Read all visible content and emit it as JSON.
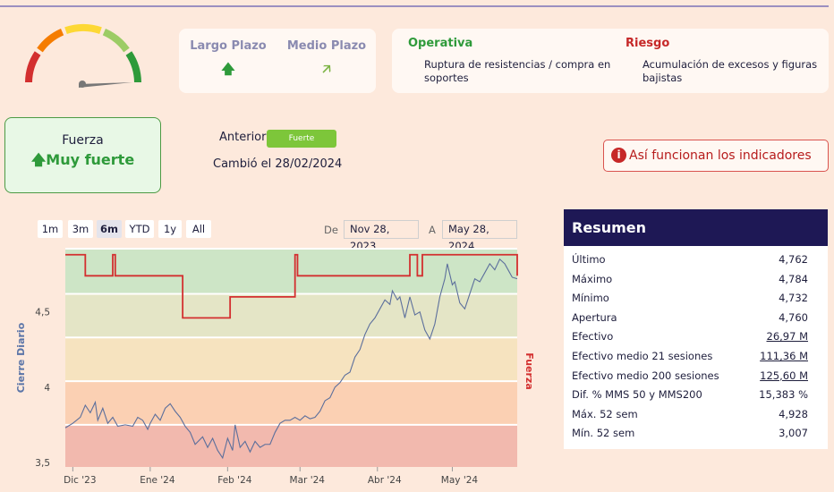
{
  "gauge": {
    "colors": [
      "#d32f2f",
      "#f57c00",
      "#fdd835",
      "#9ccc65",
      "#2e9a3a"
    ],
    "needle_color": "#777777"
  },
  "terms": [
    {
      "label": "Largo Plazo",
      "arrow": "🡅",
      "color": "#2e9a3a"
    },
    {
      "label": "Medio Plazo",
      "arrow": "🡥",
      "color": "#7cb342"
    }
  ],
  "operativa": {
    "title": "Operativa",
    "text": "Ruptura de resistencias / compra en soportes"
  },
  "riesgo": {
    "title": "Riesgo",
    "text": "Acumulación de excesos y figuras bajistas"
  },
  "strength": {
    "label": "Fuerza",
    "arrow": "🡅",
    "value": "Muy fuerte"
  },
  "previous": {
    "label": "Anterior",
    "badge": "Fuerte",
    "changed": "Cambió el 28/02/2024"
  },
  "info_button": {
    "icon": "i",
    "label": "Así funcionan los indicadores"
  },
  "range_buttons": [
    "1m",
    "3m",
    "6m",
    "YTD",
    "1y",
    "All"
  ],
  "active_range": "6m",
  "date_range": {
    "from_label": "De",
    "from": "Nov 28, 2023",
    "to_label": "A",
    "to": "May 28, 2024"
  },
  "chart_data": {
    "type": "line",
    "ylabel": "Cierre Diario",
    "y2label": "Fuerza",
    "y_ticks": [
      "3,5",
      "4",
      "4,5"
    ],
    "ylim": [
      3.47,
      4.92
    ],
    "x_ticks": [
      "Dic '23",
      "Ene '24",
      "Feb '24",
      "Mar '24",
      "Abr '24",
      "May '24"
    ],
    "x_tick_days": [
      3,
      34,
      65,
      94,
      125,
      155
    ],
    "x_days_total": 181,
    "bands": [
      {
        "from": 4.62,
        "to": 4.92,
        "color": "#cde5c6"
      },
      {
        "from": 4.33,
        "to": 4.62,
        "color": "#e4e5c6"
      },
      {
        "from": 4.04,
        "to": 4.33,
        "color": "#f6e3bf"
      },
      {
        "from": 3.75,
        "to": 4.04,
        "color": "#fbd0b3"
      },
      {
        "from": 3.47,
        "to": 3.75,
        "color": "#f2b9ae"
      }
    ],
    "series": [
      {
        "name": "Cierre Diario",
        "color": "#5c6f9c",
        "points": [
          [
            0,
            3.73
          ],
          [
            3,
            3.76
          ],
          [
            6,
            3.8
          ],
          [
            8,
            3.88
          ],
          [
            10,
            3.83
          ],
          [
            12,
            3.9
          ],
          [
            13,
            3.78
          ],
          [
            15,
            3.86
          ],
          [
            17,
            3.76
          ],
          [
            19,
            3.8
          ],
          [
            21,
            3.74
          ],
          [
            24,
            3.75
          ],
          [
            27,
            3.74
          ],
          [
            29,
            3.8
          ],
          [
            31,
            3.78
          ],
          [
            33,
            3.72
          ],
          [
            34,
            3.76
          ],
          [
            36,
            3.82
          ],
          [
            38,
            3.78
          ],
          [
            40,
            3.86
          ],
          [
            42,
            3.89
          ],
          [
            44,
            3.84
          ],
          [
            46,
            3.8
          ],
          [
            48,
            3.74
          ],
          [
            50,
            3.7
          ],
          [
            52,
            3.62
          ],
          [
            55,
            3.67
          ],
          [
            57,
            3.6
          ],
          [
            59,
            3.66
          ],
          [
            61,
            3.58
          ],
          [
            63,
            3.53
          ],
          [
            65,
            3.66
          ],
          [
            67,
            3.58
          ],
          [
            68,
            3.75
          ],
          [
            70,
            3.6
          ],
          [
            72,
            3.64
          ],
          [
            74,
            3.57
          ],
          [
            76,
            3.64
          ],
          [
            78,
            3.6
          ],
          [
            80,
            3.62
          ],
          [
            82,
            3.62
          ],
          [
            84,
            3.7
          ],
          [
            86,
            3.76
          ],
          [
            88,
            3.78
          ],
          [
            90,
            3.78
          ],
          [
            92,
            3.8
          ],
          [
            94,
            3.78
          ],
          [
            96,
            3.81
          ],
          [
            98,
            3.79
          ],
          [
            100,
            3.8
          ],
          [
            102,
            3.84
          ],
          [
            104,
            3.91
          ],
          [
            106,
            3.93
          ],
          [
            108,
            4.0
          ],
          [
            110,
            4.03
          ],
          [
            112,
            4.08
          ],
          [
            114,
            4.1
          ],
          [
            116,
            4.2
          ],
          [
            118,
            4.25
          ],
          [
            120,
            4.35
          ],
          [
            122,
            4.42
          ],
          [
            124,
            4.46
          ],
          [
            126,
            4.52
          ],
          [
            128,
            4.58
          ],
          [
            130,
            4.55
          ],
          [
            131,
            4.64
          ],
          [
            133,
            4.58
          ],
          [
            134,
            4.6
          ],
          [
            136,
            4.46
          ],
          [
            138,
            4.6
          ],
          [
            140,
            4.48
          ],
          [
            142,
            4.5
          ],
          [
            144,
            4.38
          ],
          [
            146,
            4.32
          ],
          [
            148,
            4.42
          ],
          [
            150,
            4.6
          ],
          [
            152,
            4.72
          ],
          [
            153,
            4.82
          ],
          [
            155,
            4.68
          ],
          [
            156,
            4.7
          ],
          [
            158,
            4.56
          ],
          [
            160,
            4.52
          ],
          [
            162,
            4.62
          ],
          [
            164,
            4.72
          ],
          [
            166,
            4.7
          ],
          [
            168,
            4.76
          ],
          [
            170,
            4.82
          ],
          [
            172,
            4.78
          ],
          [
            174,
            4.85
          ],
          [
            176,
            4.82
          ],
          [
            178,
            4.76
          ],
          [
            179,
            4.73
          ],
          [
            181,
            4.72
          ]
        ]
      },
      {
        "name": "Fuerza",
        "color": "#d32f2f",
        "levels": [
          4.88,
          4.74,
          4.46,
          4.6
        ],
        "steps": [
          [
            0,
            4.88
          ],
          [
            8,
            4.88
          ],
          [
            8,
            4.74
          ],
          [
            19,
            4.74
          ],
          [
            19,
            4.88
          ],
          [
            20,
            4.88
          ],
          [
            20,
            4.74
          ],
          [
            47,
            4.74
          ],
          [
            47,
            4.46
          ],
          [
            66,
            4.46
          ],
          [
            66,
            4.6
          ],
          [
            92,
            4.6
          ],
          [
            92,
            4.88
          ],
          [
            93,
            4.88
          ],
          [
            93,
            4.74
          ],
          [
            138,
            4.74
          ],
          [
            138,
            4.88
          ],
          [
            141,
            4.88
          ],
          [
            141,
            4.74
          ],
          [
            143,
            4.74
          ],
          [
            143,
            4.88
          ],
          [
            181,
            4.88
          ],
          [
            181,
            4.74
          ]
        ]
      }
    ]
  },
  "summary": {
    "title": "Resumen",
    "rows": [
      {
        "label": "Último",
        "value": "4,762",
        "link": false
      },
      {
        "label": "Máximo",
        "value": "4,784",
        "link": false
      },
      {
        "label": "Mínimo",
        "value": "4,732",
        "link": false
      },
      {
        "label": "Apertura",
        "value": "4,760",
        "link": false
      },
      {
        "label": "Efectivo",
        "value": "26,97 M",
        "link": true
      },
      {
        "label": "Efectivo medio 21 sesiones",
        "value": "111,36 M",
        "link": true
      },
      {
        "label": "Efectivo medio 200 sesiones",
        "value": "125,60 M",
        "link": true
      },
      {
        "label": "Dif. % MMS 50 y MMS200",
        "value": "15,383 %",
        "link": false
      },
      {
        "label": "Máx. 52 sem",
        "value": "4,928",
        "link": false
      },
      {
        "label": "Mín. 52 sem",
        "value": "3,007",
        "link": false
      }
    ]
  }
}
